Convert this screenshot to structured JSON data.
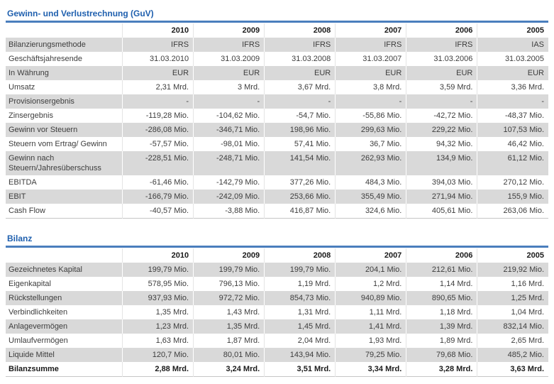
{
  "colors": {
    "title_blue": "#1e5fae",
    "rule_blue": "#4a7ebd",
    "stripe_gray": "#d9d9d9",
    "table_bottom_border": "#c6c6c6",
    "text": "#3d3d3d"
  },
  "sections": [
    {
      "title": "Gewinn- und Verlustrechnung (GuV)",
      "years": [
        "2010",
        "2009",
        "2008",
        "2007",
        "2006",
        "2005"
      ],
      "rows": [
        {
          "label": "Bilanzierungsmethode",
          "values": [
            "IFRS",
            "IFRS",
            "IFRS",
            "IFRS",
            "IFRS",
            "IAS"
          ]
        },
        {
          "label": "Geschäftsjahresende",
          "values": [
            "31.03.2010",
            "31.03.2009",
            "31.03.2008",
            "31.03.2007",
            "31.03.2006",
            "31.03.2005"
          ]
        },
        {
          "label": "In Währung",
          "values": [
            "EUR",
            "EUR",
            "EUR",
            "EUR",
            "EUR",
            "EUR"
          ]
        },
        {
          "label": "Umsatz",
          "values": [
            "2,31 Mrd.",
            "3 Mrd.",
            "3,67 Mrd.",
            "3,8 Mrd.",
            "3,59 Mrd.",
            "3,36 Mrd."
          ]
        },
        {
          "label": "Provisionsergebnis",
          "values": [
            "-",
            "-",
            "-",
            "-",
            "-",
            "-"
          ]
        },
        {
          "label": "Zinsergebnis",
          "values": [
            "-119,28 Mio.",
            "-104,62 Mio.",
            "-54,7 Mio.",
            "-55,86 Mio.",
            "-42,72 Mio.",
            "-48,37 Mio."
          ]
        },
        {
          "label": "Gewinn vor Steuern",
          "values": [
            "-286,08 Mio.",
            "-346,71 Mio.",
            "198,96 Mio.",
            "299,63 Mio.",
            "229,22 Mio.",
            "107,53 Mio."
          ]
        },
        {
          "label": "Steuern vom Ertrag/ Gewinn",
          "values": [
            "-57,57 Mio.",
            "-98,01 Mio.",
            "57,41 Mio.",
            "36,7 Mio.",
            "94,32 Mio.",
            "46,42 Mio."
          ]
        },
        {
          "label": "Gewinn nach Steuern/Jahresüberschuss",
          "values": [
            "-228,51 Mio.",
            "-248,71 Mio.",
            "141,54 Mio.",
            "262,93 Mio.",
            "134,9 Mio.",
            "61,12 Mio."
          ]
        },
        {
          "label": "EBITDA",
          "values": [
            "-61,46 Mio.",
            "-142,79 Mio.",
            "377,26 Mio.",
            "484,3 Mio.",
            "394,03 Mio.",
            "270,12 Mio."
          ]
        },
        {
          "label": "EBIT",
          "values": [
            "-166,79 Mio.",
            "-242,09 Mio.",
            "253,66 Mio.",
            "355,49 Mio.",
            "271,94 Mio.",
            "155,9 Mio."
          ]
        },
        {
          "label": "Cash Flow",
          "values": [
            "-40,57 Mio.",
            "-3,88 Mio.",
            "416,87 Mio.",
            "324,6 Mio.",
            "405,61 Mio.",
            "263,06 Mio."
          ]
        }
      ]
    },
    {
      "title": "Bilanz",
      "years": [
        "2010",
        "2009",
        "2008",
        "2007",
        "2006",
        "2005"
      ],
      "rows": [
        {
          "label": "Gezeichnetes Kapital",
          "values": [
            "199,79 Mio.",
            "199,79 Mio.",
            "199,79 Mio.",
            "204,1 Mio.",
            "212,61 Mio.",
            "219,92 Mio."
          ]
        },
        {
          "label": "Eigenkapital",
          "values": [
            "578,95 Mio.",
            "796,13 Mio.",
            "1,19 Mrd.",
            "1,2 Mrd.",
            "1,14 Mrd.",
            "1,16 Mrd."
          ]
        },
        {
          "label": "Rückstellungen",
          "values": [
            "937,93 Mio.",
            "972,72 Mio.",
            "854,73 Mio.",
            "940,89 Mio.",
            "890,65 Mio.",
            "1,25 Mrd."
          ]
        },
        {
          "label": "Verbindlichkeiten",
          "values": [
            "1,35 Mrd.",
            "1,43 Mrd.",
            "1,31 Mrd.",
            "1,11 Mrd.",
            "1,18 Mrd.",
            "1,04 Mrd."
          ]
        },
        {
          "label": "Anlagevermögen",
          "values": [
            "1,23 Mrd.",
            "1,35 Mrd.",
            "1,45 Mrd.",
            "1,41 Mrd.",
            "1,39 Mrd.",
            "832,14 Mio."
          ]
        },
        {
          "label": "Umlaufvermögen",
          "values": [
            "1,63 Mrd.",
            "1,87 Mrd.",
            "2,04 Mrd.",
            "1,93 Mrd.",
            "1,89 Mrd.",
            "2,65 Mrd."
          ]
        },
        {
          "label": "Liquide Mittel",
          "values": [
            "120,7 Mio.",
            "80,01 Mio.",
            "143,94 Mio.",
            "79,25 Mio.",
            "79,68 Mio.",
            "485,2 Mio."
          ]
        },
        {
          "label": "Bilanzsumme",
          "values": [
            "2,88 Mrd.",
            "3,24 Mrd.",
            "3,51 Mrd.",
            "3,34 Mrd.",
            "3,28 Mrd.",
            "3,63 Mrd."
          ],
          "bold": true
        }
      ]
    }
  ]
}
